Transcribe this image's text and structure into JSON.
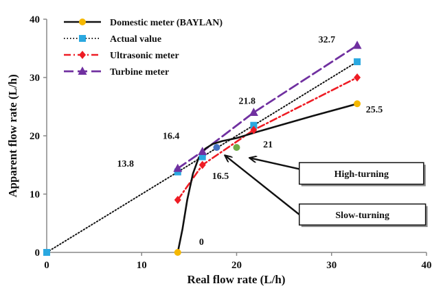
{
  "chart_data": {
    "type": "line",
    "title": "",
    "xlabel": "Real flow rate (L/h)",
    "ylabel": "Apparent  flow rate (L/h)",
    "xlim": [
      0,
      40
    ],
    "ylim": [
      0,
      40
    ],
    "x_ticks": [
      0,
      10,
      20,
      30,
      40
    ],
    "y_ticks": [
      0,
      10,
      20,
      30,
      40
    ],
    "grid": false,
    "legend_position": "top-left",
    "series": [
      {
        "name": "Domestic meter (BAYLAN)",
        "color": "#111111",
        "marker_color": "#f5b800",
        "line_style": "solid",
        "marker": "circle",
        "curve_points": [
          [
            13.8,
            0
          ],
          [
            14.3,
            4
          ],
          [
            14.8,
            9
          ],
          [
            15.4,
            13.5
          ],
          [
            16.0,
            16.2
          ],
          [
            16.7,
            17.8
          ],
          [
            17.5,
            18.6
          ],
          [
            18.5,
            19.1
          ],
          [
            20,
            19.6
          ],
          [
            22,
            20.6
          ],
          [
            25,
            22.0
          ],
          [
            28,
            23.4
          ],
          [
            32.7,
            25.5
          ]
        ],
        "marker_points": [
          [
            13.8,
            0
          ],
          [
            32.7,
            25.5
          ]
        ]
      },
      {
        "name": "Actual value",
        "color": "#111111",
        "marker_color": "#2aa8e0",
        "line_style": "dotted",
        "marker": "square",
        "curve_points": [
          [
            0,
            0
          ],
          [
            13.8,
            13.8
          ],
          [
            16.4,
            16.4
          ],
          [
            21.8,
            21.8
          ],
          [
            32.7,
            32.7
          ]
        ],
        "marker_points": [
          [
            0,
            0
          ],
          [
            13.8,
            13.8
          ],
          [
            16.4,
            16.4
          ],
          [
            21.8,
            21.8
          ],
          [
            32.7,
            32.7
          ]
        ]
      },
      {
        "name": "Ultrasonic meter",
        "color": "#ee1c24",
        "marker_color": "#ee1c24",
        "line_style": "dashdot",
        "marker": "diamond",
        "curve_points": [
          [
            13.8,
            9
          ],
          [
            16.4,
            15
          ],
          [
            21.8,
            21
          ],
          [
            32.7,
            30
          ]
        ],
        "marker_points": [
          [
            13.8,
            9
          ],
          [
            16.4,
            15
          ],
          [
            21.8,
            21
          ],
          [
            32.7,
            30
          ]
        ]
      },
      {
        "name": "Turbine meter",
        "color": "#7030a0",
        "marker_color": "#7030a0",
        "line_style": "dashed",
        "marker": "triangle",
        "curve_points": [
          [
            13.8,
            14.4
          ],
          [
            16.4,
            17.3
          ],
          [
            21.8,
            24
          ],
          [
            32.7,
            35.5
          ]
        ],
        "marker_points": [
          [
            13.8,
            14.4
          ],
          [
            16.4,
            17.3
          ],
          [
            21.8,
            24
          ],
          [
            32.7,
            35.5
          ]
        ]
      }
    ],
    "extra_points": [
      {
        "x": 17.9,
        "y": 18,
        "color": "#4472c4"
      },
      {
        "x": 20.0,
        "y": 18,
        "color": "#70ad47"
      }
    ],
    "point_labels": [
      {
        "text": "0",
        "x": 16.3,
        "y": 1.3
      },
      {
        "text": "13.8",
        "x": 8.3,
        "y": 14.7
      },
      {
        "text": "16.4",
        "x": 13.1,
        "y": 19.5
      },
      {
        "text": "16.5",
        "x": 18.3,
        "y": 12.6
      },
      {
        "text": "21",
        "x": 23.3,
        "y": 18.0
      },
      {
        "text": "21.8",
        "x": 21.1,
        "y": 25.5
      },
      {
        "text": "25.5",
        "x": 34.5,
        "y": 24.0
      },
      {
        "text": "32.7",
        "x": 29.5,
        "y": 36.0
      }
    ],
    "annotations": [
      {
        "text": "High-turning",
        "box": {
          "x1": 26.6,
          "y1": 15.4,
          "x2": 39.7,
          "y2": 11.7
        },
        "arrow_from": [
          26.6,
          14.3
        ],
        "arrow_to": [
          21.4,
          16.2
        ]
      },
      {
        "text": "Slow-turning",
        "box": {
          "x1": 26.6,
          "y1": 8.3,
          "x2": 39.9,
          "y2": 4.7
        },
        "arrow_from": [
          26.6,
          6.5
        ],
        "arrow_to": [
          18.8,
          16.6
        ]
      }
    ]
  }
}
